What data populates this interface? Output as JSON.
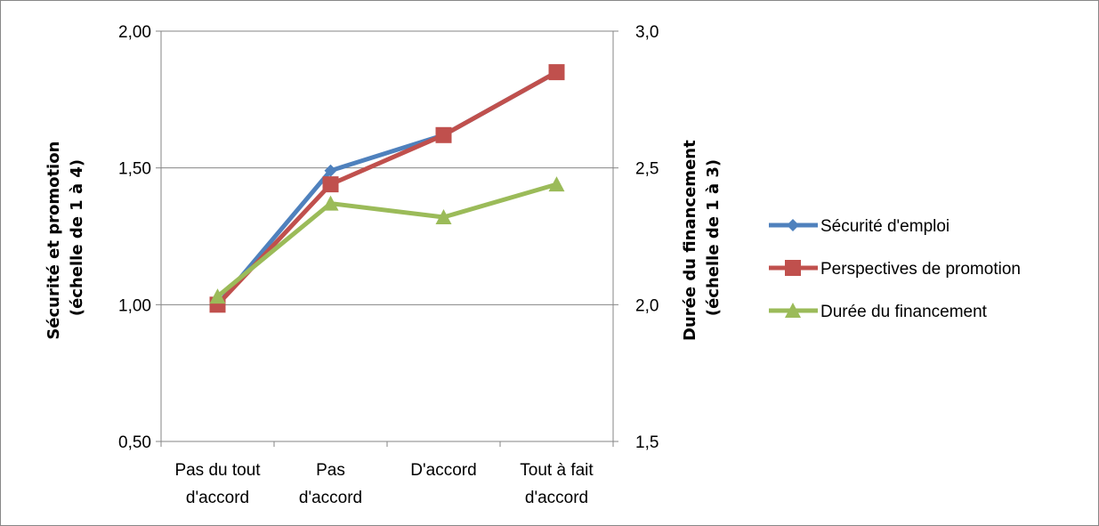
{
  "chart_data": {
    "type": "line",
    "categories": [
      [
        "Pas du tout",
        "d'accord"
      ],
      [
        "Pas",
        "d'accord"
      ],
      [
        "D'accord"
      ],
      [
        "Tout à fait",
        "d'accord"
      ]
    ],
    "left_axis": {
      "title_lines": [
        "Sécurité et promotion",
        "(échelle de 1 à 4)"
      ],
      "ylim": [
        0.5,
        2.0
      ],
      "ticks": [
        0.5,
        1.0,
        1.5,
        2.0
      ],
      "tick_labels": [
        "0,50",
        "1,00",
        "1,50",
        "2,00"
      ]
    },
    "right_axis": {
      "title_lines": [
        "Durée du financement",
        "(échelle de 1 à 3)"
      ],
      "ylim": [
        1.5,
        3.0
      ],
      "ticks": [
        1.5,
        2.0,
        2.5,
        3.0
      ],
      "tick_labels": [
        "1,5",
        "2,0",
        "2,5",
        "3,0"
      ]
    },
    "grid": true,
    "legend_position": "right",
    "series": [
      {
        "name": "Sécurité d'emploi",
        "axis": "left",
        "marker": "diamond",
        "color": "#4F81BD",
        "values": [
          1.0,
          1.49,
          1.62,
          1.85
        ]
      },
      {
        "name": "Perspectives de promotion",
        "axis": "left",
        "marker": "square",
        "color": "#C0504D",
        "values": [
          1.0,
          1.44,
          1.62,
          1.85
        ]
      },
      {
        "name": "Durée du financement",
        "axis": "right",
        "marker": "triangle",
        "color": "#9BBB59",
        "values": [
          2.03,
          2.37,
          2.32,
          2.44
        ]
      }
    ]
  }
}
